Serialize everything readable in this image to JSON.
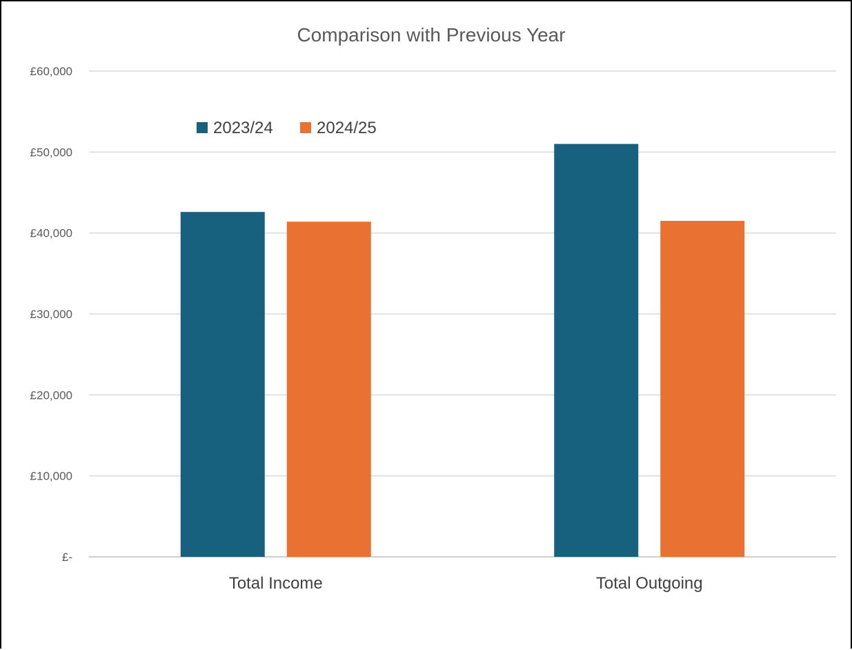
{
  "chart_data": {
    "type": "bar",
    "title": "Comparison with Previous Year",
    "categories": [
      "Total Income",
      "Total Outgoing"
    ],
    "series": [
      {
        "name": "2023/24",
        "values": [
          42600,
          51000
        ],
        "color": "#17607e"
      },
      {
        "name": "2024/25",
        "values": [
          41400,
          41500
        ],
        "color": "#e97132"
      }
    ],
    "ylim": [
      0,
      60000
    ],
    "yticks": [
      0,
      10000,
      20000,
      30000,
      40000,
      50000,
      60000
    ],
    "ytick_labels": [
      "£-",
      "£10,000",
      "£20,000",
      "£30,000",
      "£40,000",
      "£50,000",
      "£60,000"
    ],
    "grid": true,
    "legend_position": "top-left",
    "xlabel": "",
    "ylabel": ""
  }
}
